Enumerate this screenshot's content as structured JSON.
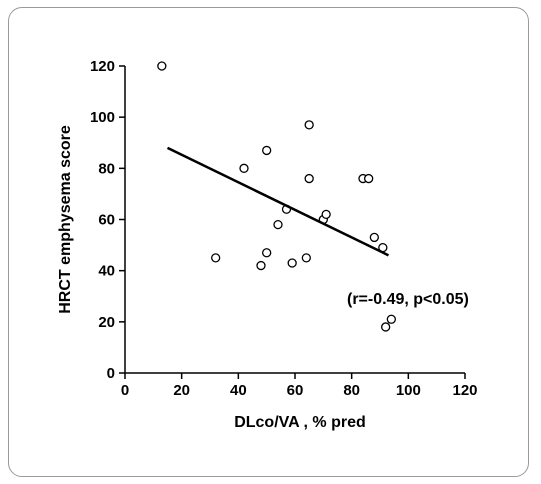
{
  "chart_data": {
    "type": "scatter",
    "title": "",
    "xlabel": "DLco/VA   , % pred",
    "ylabel": "HRCT emphysema score",
    "xlim": [
      0,
      120
    ],
    "ylim": [
      0,
      120
    ],
    "xticks": [
      0,
      20,
      40,
      60,
      80,
      100,
      120
    ],
    "yticks": [
      0,
      20,
      40,
      60,
      80,
      100,
      120
    ],
    "grid": false,
    "annotation": "(r=-0.49, p<0.05)",
    "series": [
      {
        "points": [
          [
            13,
            120
          ],
          [
            32,
            45
          ],
          [
            42,
            80
          ],
          [
            48,
            42
          ],
          [
            50,
            87
          ],
          [
            50,
            47
          ],
          [
            54,
            58
          ],
          [
            57,
            64
          ],
          [
            59,
            43
          ],
          [
            64,
            45
          ],
          [
            65,
            97
          ],
          [
            65,
            76
          ],
          [
            70,
            60
          ],
          [
            71,
            62
          ],
          [
            84,
            76
          ],
          [
            86,
            76
          ],
          [
            88,
            53
          ],
          [
            91,
            49
          ],
          [
            92,
            18
          ],
          [
            94,
            21
          ]
        ]
      }
    ],
    "trendline": {
      "x": [
        15,
        93
      ],
      "y": [
        88,
        46
      ]
    }
  }
}
